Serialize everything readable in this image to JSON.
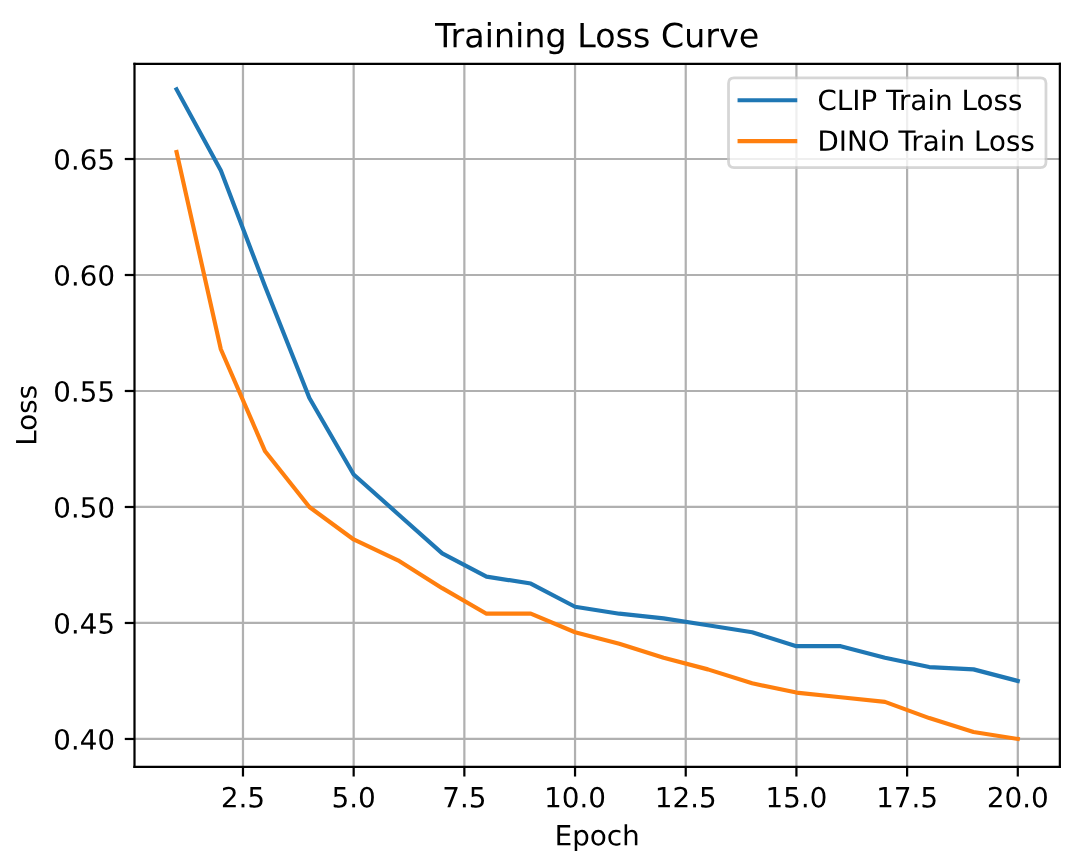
{
  "chart_data": {
    "type": "line",
    "title": "Training Loss Curve",
    "xlabel": "Epoch",
    "ylabel": "Loss",
    "x": [
      1,
      2,
      3,
      4,
      5,
      6,
      7,
      8,
      9,
      10,
      11,
      12,
      13,
      14,
      15,
      16,
      17,
      18,
      19,
      20
    ],
    "series": [
      {
        "name": "CLIP Train Loss",
        "color": "#1f77b4",
        "values": [
          0.68,
          0.645,
          0.595,
          0.547,
          0.514,
          0.497,
          0.48,
          0.47,
          0.467,
          0.457,
          0.454,
          0.452,
          0.449,
          0.446,
          0.44,
          0.44,
          0.435,
          0.431,
          0.43,
          0.425
        ]
      },
      {
        "name": "DINO Train Loss",
        "color": "#ff7f0e",
        "values": [
          0.653,
          0.568,
          0.524,
          0.5,
          0.486,
          0.477,
          0.465,
          0.454,
          0.454,
          0.446,
          0.441,
          0.435,
          0.43,
          0.424,
          0.42,
          0.418,
          0.416,
          0.409,
          0.403,
          0.4
        ]
      }
    ],
    "xlim": [
      0.05,
      20.95
    ],
    "xticks": [
      2.5,
      {
        "value": 5,
        "label": "5.0"
      },
      7.5,
      {
        "value": 10,
        "label": "10.0"
      },
      12.5,
      {
        "value": 15,
        "label": "15.0"
      },
      17.5,
      {
        "value": 20,
        "label": "20.0"
      }
    ],
    "ylim": [
      0.388,
      0.691
    ],
    "yticks": [
      {
        "value": 0.4,
        "label": "0.40"
      },
      0.45,
      {
        "value": 0.5,
        "label": "0.50"
      },
      0.55,
      {
        "value": 0.6,
        "label": "0.60"
      },
      0.65
    ],
    "grid": true,
    "legend": "top right",
    "marker": "none",
    "line_style": "solid"
  }
}
